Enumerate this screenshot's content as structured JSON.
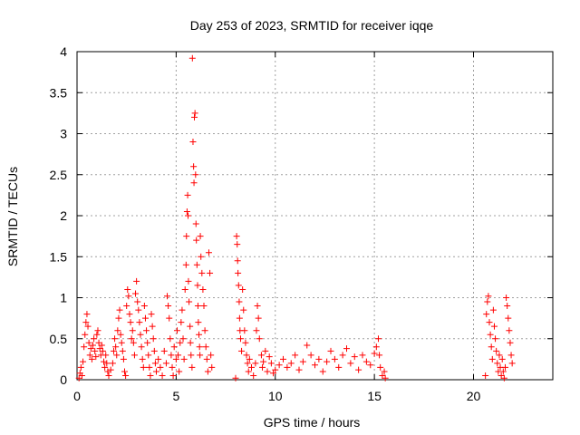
{
  "chart_data": {
    "type": "scatter",
    "title": "Day 253 of 2023, SRMTID for receiver iqqe",
    "xlabel": "GPS time / hours",
    "ylabel": "SRMTID / TECUs",
    "xlim": [
      0,
      24
    ],
    "ylim": [
      0,
      4
    ],
    "xticks": [
      0,
      5,
      10,
      15,
      20
    ],
    "yticks": [
      0,
      0.5,
      1,
      1.5,
      2,
      2.5,
      3,
      3.5,
      4
    ],
    "xtick_labels": [
      "0",
      "5",
      "10",
      "15",
      "20"
    ],
    "ytick_labels": [
      "0",
      "0.5",
      "1",
      "1.5",
      "2",
      "2.5",
      "3",
      "3.5",
      "4"
    ],
    "grid": true,
    "marker": "+",
    "color": "#ff0000",
    "series": [
      {
        "name": "SRMTID",
        "points": [
          [
            0.1,
            0.02
          ],
          [
            0.15,
            0.08
          ],
          [
            0.2,
            0.15
          ],
          [
            0.25,
            0.05
          ],
          [
            0.3,
            0.22
          ],
          [
            0.35,
            0.4
          ],
          [
            0.4,
            0.55
          ],
          [
            0.45,
            0.7
          ],
          [
            0.5,
            0.8
          ],
          [
            0.55,
            0.65
          ],
          [
            0.6,
            0.45
          ],
          [
            0.65,
            0.3
          ],
          [
            0.7,
            0.38
          ],
          [
            0.75,
            0.25
          ],
          [
            0.8,
            0.42
          ],
          [
            0.85,
            0.5
          ],
          [
            0.9,
            0.35
          ],
          [
            0.95,
            0.28
          ],
          [
            1.0,
            0.55
          ],
          [
            1.05,
            0.6
          ],
          [
            1.1,
            0.45
          ],
          [
            1.15,
            0.38
          ],
          [
            1.2,
            0.3
          ],
          [
            1.25,
            0.42
          ],
          [
            1.3,
            0.35
          ],
          [
            1.35,
            0.22
          ],
          [
            1.4,
            0.15
          ],
          [
            1.45,
            0.3
          ],
          [
            1.5,
            0.2
          ],
          [
            1.55,
            0.1
          ],
          [
            1.6,
            0.05
          ],
          [
            1.7,
            0.12
          ],
          [
            1.8,
            0.2
          ],
          [
            1.85,
            0.35
          ],
          [
            1.9,
            0.5
          ],
          [
            1.95,
            0.4
          ],
          [
            2.0,
            0.3
          ],
          [
            2.05,
            0.6
          ],
          [
            2.1,
            0.75
          ],
          [
            2.15,
            0.85
          ],
          [
            2.2,
            0.55
          ],
          [
            2.25,
            0.45
          ],
          [
            2.3,
            0.35
          ],
          [
            2.35,
            0.25
          ],
          [
            2.4,
            0.1
          ],
          [
            2.45,
            0.05
          ],
          [
            2.5,
            0.9
          ],
          [
            2.55,
            1.1
          ],
          [
            2.6,
            1.02
          ],
          [
            2.65,
            0.8
          ],
          [
            2.7,
            0.7
          ],
          [
            2.75,
            0.5
          ],
          [
            2.8,
            0.6
          ],
          [
            2.85,
            0.45
          ],
          [
            2.9,
            0.3
          ],
          [
            2.95,
            1.05
          ],
          [
            3.0,
            1.2
          ],
          [
            3.05,
            0.95
          ],
          [
            3.1,
            0.85
          ],
          [
            3.15,
            0.7
          ],
          [
            3.2,
            0.55
          ],
          [
            3.25,
            0.4
          ],
          [
            3.3,
            0.25
          ],
          [
            3.35,
            0.15
          ],
          [
            3.4,
            0.9
          ],
          [
            3.45,
            0.75
          ],
          [
            3.5,
            0.6
          ],
          [
            3.55,
            0.45
          ],
          [
            3.6,
            0.3
          ],
          [
            3.65,
            0.15
          ],
          [
            3.7,
            0.05
          ],
          [
            3.75,
            0.8
          ],
          [
            3.8,
            0.65
          ],
          [
            3.85,
            0.5
          ],
          [
            3.9,
            0.35
          ],
          [
            3.95,
            0.2
          ],
          [
            4.0,
            0.1
          ],
          [
            4.1,
            0.25
          ],
          [
            4.2,
            0.15
          ],
          [
            4.3,
            0.05
          ],
          [
            4.4,
            0.35
          ],
          [
            4.5,
            0.2
          ],
          [
            4.55,
            1.02
          ],
          [
            4.6,
            0.9
          ],
          [
            4.65,
            0.75
          ],
          [
            4.7,
            0.5
          ],
          [
            4.75,
            0.3
          ],
          [
            4.8,
            0.15
          ],
          [
            4.85,
            0.05
          ],
          [
            4.9,
            0.4
          ],
          [
            5.0,
            0.25
          ],
          [
            5.05,
            0.6
          ],
          [
            5.1,
            0.3
          ],
          [
            5.15,
            0.1
          ],
          [
            5.2,
            0.45
          ],
          [
            5.25,
            0.7
          ],
          [
            5.3,
            0.85
          ],
          [
            5.35,
            0.5
          ],
          [
            5.4,
            0.25
          ],
          [
            5.45,
            1.1
          ],
          [
            5.5,
            1.4
          ],
          [
            5.52,
            1.75
          ],
          [
            5.55,
            2.05
          ],
          [
            5.58,
            2.25
          ],
          [
            5.6,
            2.0
          ],
          [
            5.62,
            1.2
          ],
          [
            5.65,
            0.95
          ],
          [
            5.7,
            0.65
          ],
          [
            5.72,
            0.45
          ],
          [
            5.75,
            0.3
          ],
          [
            5.8,
            0.15
          ],
          [
            5.82,
            3.92
          ],
          [
            5.85,
            2.9
          ],
          [
            5.88,
            2.6
          ],
          [
            5.9,
            2.4
          ],
          [
            5.92,
            3.2
          ],
          [
            5.95,
            3.25
          ],
          [
            5.98,
            2.5
          ],
          [
            6.0,
            1.9
          ],
          [
            6.02,
            1.7
          ],
          [
            6.05,
            1.4
          ],
          [
            6.08,
            1.15
          ],
          [
            6.1,
            0.9
          ],
          [
            6.12,
            0.7
          ],
          [
            6.15,
            0.55
          ],
          [
            6.18,
            0.4
          ],
          [
            6.2,
            0.3
          ],
          [
            6.22,
            1.75
          ],
          [
            6.25,
            1.5
          ],
          [
            6.3,
            1.3
          ],
          [
            6.35,
            1.1
          ],
          [
            6.4,
            0.9
          ],
          [
            6.45,
            0.6
          ],
          [
            6.5,
            0.4
          ],
          [
            6.55,
            0.25
          ],
          [
            6.6,
            0.1
          ],
          [
            6.65,
            1.55
          ],
          [
            6.7,
            1.3
          ],
          [
            6.75,
            0.3
          ],
          [
            6.8,
            0.15
          ],
          [
            8.0,
            0.02
          ],
          [
            8.05,
            1.75
          ],
          [
            8.08,
            1.65
          ],
          [
            8.1,
            1.45
          ],
          [
            8.12,
            1.3
          ],
          [
            8.15,
            1.15
          ],
          [
            8.18,
            0.95
          ],
          [
            8.2,
            0.75
          ],
          [
            8.22,
            0.6
          ],
          [
            8.25,
            0.5
          ],
          [
            8.3,
            0.35
          ],
          [
            8.35,
            1.1
          ],
          [
            8.4,
            0.85
          ],
          [
            8.45,
            0.6
          ],
          [
            8.5,
            0.45
          ],
          [
            8.55,
            0.3
          ],
          [
            8.6,
            0.2
          ],
          [
            8.65,
            0.1
          ],
          [
            8.7,
            0.25
          ],
          [
            8.8,
            0.15
          ],
          [
            8.9,
            0.05
          ],
          [
            9.0,
            0.2
          ],
          [
            9.05,
            0.6
          ],
          [
            9.1,
            0.9
          ],
          [
            9.15,
            0.75
          ],
          [
            9.2,
            0.5
          ],
          [
            9.3,
            0.3
          ],
          [
            9.35,
            0.15
          ],
          [
            9.4,
            0.22
          ],
          [
            9.5,
            0.35
          ],
          [
            9.6,
            0.1
          ],
          [
            9.7,
            0.28
          ],
          [
            9.8,
            0.2
          ],
          [
            9.9,
            0.08
          ],
          [
            10.0,
            0.12
          ],
          [
            10.2,
            0.18
          ],
          [
            10.4,
            0.25
          ],
          [
            10.6,
            0.15
          ],
          [
            10.8,
            0.2
          ],
          [
            11.0,
            0.3
          ],
          [
            11.2,
            0.12
          ],
          [
            11.4,
            0.22
          ],
          [
            11.6,
            0.42
          ],
          [
            11.8,
            0.3
          ],
          [
            12.0,
            0.18
          ],
          [
            12.2,
            0.25
          ],
          [
            12.4,
            0.1
          ],
          [
            12.6,
            0.22
          ],
          [
            12.8,
            0.35
          ],
          [
            13.0,
            0.25
          ],
          [
            13.2,
            0.15
          ],
          [
            13.4,
            0.3
          ],
          [
            13.6,
            0.38
          ],
          [
            13.8,
            0.2
          ],
          [
            14.0,
            0.28
          ],
          [
            14.2,
            0.12
          ],
          [
            14.4,
            0.3
          ],
          [
            14.6,
            0.22
          ],
          [
            14.8,
            0.18
          ],
          [
            15.0,
            0.32
          ],
          [
            15.1,
            0.4
          ],
          [
            15.2,
            0.5
          ],
          [
            15.25,
            0.3
          ],
          [
            15.3,
            0.15
          ],
          [
            15.4,
            0.05
          ],
          [
            15.5,
            0.1
          ],
          [
            15.55,
            0.02
          ],
          [
            20.6,
            0.05
          ],
          [
            20.65,
            0.8
          ],
          [
            20.7,
            0.95
          ],
          [
            20.75,
            1.02
          ],
          [
            20.8,
            0.7
          ],
          [
            20.85,
            0.55
          ],
          [
            20.9,
            0.4
          ],
          [
            20.95,
            0.25
          ],
          [
            21.0,
            0.85
          ],
          [
            21.05,
            0.65
          ],
          [
            21.1,
            0.5
          ],
          [
            21.15,
            0.35
          ],
          [
            21.2,
            0.2
          ],
          [
            21.25,
            0.1
          ],
          [
            21.3,
            0.3
          ],
          [
            21.35,
            0.15
          ],
          [
            21.4,
            0.05
          ],
          [
            21.45,
            0.25
          ],
          [
            21.5,
            0.1
          ],
          [
            21.55,
            0.02
          ],
          [
            21.6,
            0.15
          ],
          [
            21.65,
            1.0
          ],
          [
            21.7,
            0.9
          ],
          [
            21.75,
            0.75
          ],
          [
            21.8,
            0.6
          ],
          [
            21.85,
            0.45
          ],
          [
            21.9,
            0.3
          ],
          [
            21.95,
            0.2
          ]
        ]
      }
    ]
  }
}
